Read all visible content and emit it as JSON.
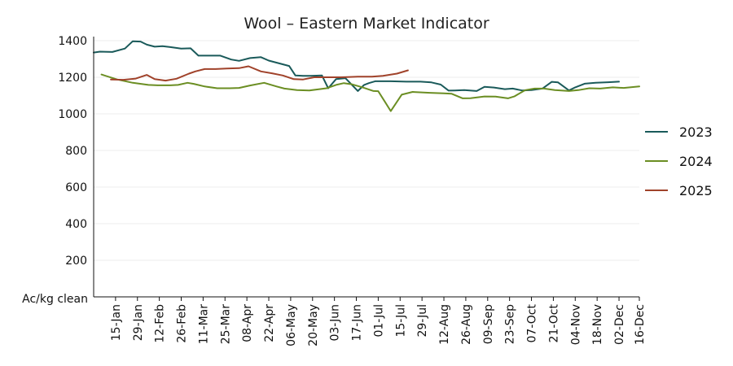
{
  "chart_data": {
    "type": "line",
    "title": "Wool – Eastern Market Indicator",
    "ylabel": "Ac/kg clean",
    "xlabel": "",
    "ylim": [
      0,
      1400
    ],
    "yticks": [
      200,
      400,
      600,
      800,
      1000,
      1200,
      1400
    ],
    "x_unit": "day of year",
    "xlim": [
      1,
      350
    ],
    "xtick_labels": [
      "15-Jan",
      "29-Jan",
      "12-Feb",
      "26-Feb",
      "11-Mar",
      "25-Mar",
      "08-Apr",
      "22-Apr",
      "06-May",
      "20-May",
      "03-Jun",
      "17-Jun",
      "01-Jul",
      "15-Jul",
      "29-Jul",
      "12-Aug",
      "26-Aug",
      "09-Sep",
      "23-Sep",
      "07-Oct",
      "21-Oct",
      "04-Nov",
      "18-Nov",
      "02-Dec",
      "16-Dec"
    ],
    "xtick_days": [
      15,
      29,
      43,
      57,
      71,
      85,
      99,
      113,
      127,
      141,
      155,
      169,
      183,
      197,
      211,
      225,
      239,
      253,
      267,
      281,
      295,
      309,
      323,
      337,
      351
    ],
    "grid": true,
    "legend_position": "right",
    "series": [
      {
        "name": "2023",
        "color": "#1a5a5a",
        "x": [
          1,
          5,
          13,
          21,
          26,
          31,
          35,
          40,
          45,
          50,
          57,
          63,
          68,
          73,
          82,
          89,
          94,
          101,
          108,
          113,
          126,
          130,
          135,
          140,
          147,
          151,
          156,
          162,
          170,
          174,
          177,
          181,
          186,
          191,
          201,
          210,
          217,
          223,
          228,
          232,
          238,
          246,
          251,
          257,
          264,
          269,
          275,
          281,
          288,
          294,
          298,
          305,
          309,
          315,
          322,
          330,
          337
        ],
        "y": [
          1335,
          1340,
          1338,
          1357,
          1397,
          1395,
          1378,
          1367,
          1370,
          1365,
          1357,
          1358,
          1318,
          1318,
          1318,
          1297,
          1290,
          1305,
          1310,
          1291,
          1262,
          1210,
          1208,
          1208,
          1210,
          1140,
          1190,
          1195,
          1125,
          1158,
          1168,
          1178,
          1178,
          1178,
          1176,
          1176,
          1172,
          1160,
          1127,
          1128,
          1130,
          1125,
          1148,
          1144,
          1135,
          1138,
          1128,
          1130,
          1138,
          1175,
          1172,
          1128,
          1145,
          1165,
          1170,
          1173,
          1176
        ]
      },
      {
        "name": "2024",
        "color": "#6b8e23",
        "x": [
          6,
          16,
          26,
          36,
          42,
          50,
          55,
          61,
          65,
          72,
          80,
          88,
          94,
          101,
          110,
          118,
          123,
          131,
          139,
          145,
          150,
          156,
          161,
          166,
          173,
          180,
          183,
          187,
          191,
          198,
          205,
          216,
          225,
          230,
          237,
          242,
          251,
          258,
          266,
          270,
          277,
          283,
          289,
          296,
          305,
          311,
          318,
          325,
          333,
          340,
          350
        ],
        "y": [
          1215,
          1188,
          1170,
          1158,
          1156,
          1156,
          1158,
          1170,
          1164,
          1150,
          1140,
          1140,
          1142,
          1155,
          1170,
          1150,
          1138,
          1130,
          1128,
          1134,
          1140,
          1158,
          1168,
          1162,
          1145,
          1125,
          1124,
          1070,
          1015,
          1105,
          1120,
          1115,
          1112,
          1110,
          1085,
          1086,
          1095,
          1094,
          1085,
          1095,
          1130,
          1138,
          1138,
          1130,
          1125,
          1130,
          1140,
          1138,
          1145,
          1142,
          1150
        ]
      },
      {
        "name": "2025",
        "color": "#a0422a",
        "x": [
          12,
          20,
          28,
          35,
          40,
          47,
          54,
          62,
          66,
          72,
          79,
          86,
          94,
          100,
          108,
          115,
          122,
          129,
          135,
          142,
          150,
          159,
          165,
          170,
          179,
          186,
          195,
          202
        ],
        "y": [
          1188,
          1186,
          1193,
          1213,
          1190,
          1182,
          1192,
          1220,
          1232,
          1245,
          1245,
          1248,
          1250,
          1260,
          1232,
          1222,
          1210,
          1190,
          1188,
          1200,
          1200,
          1200,
          1202,
          1203,
          1203,
          1208,
          1220,
          1238
        ]
      }
    ]
  }
}
